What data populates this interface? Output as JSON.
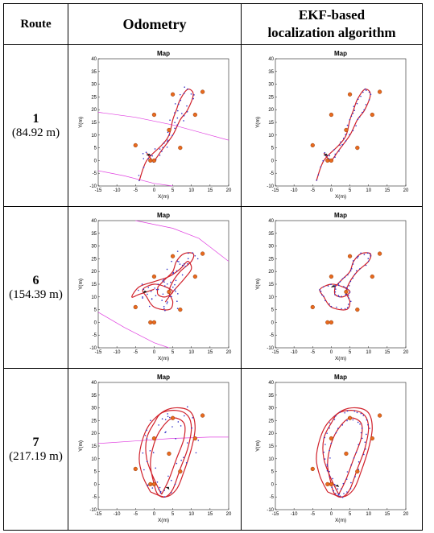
{
  "header": {
    "route": "Route",
    "odometry": "Odometry",
    "ekf_line1": "EKF-based",
    "ekf_line2": "localization algorithm"
  },
  "routes": [
    {
      "number": "1",
      "length": "(84.92 m)"
    },
    {
      "number": "6",
      "length": "(154.39 m)"
    },
    {
      "number": "7",
      "length": "(217.19 m)"
    }
  ],
  "plot_labels": {
    "title": "Map",
    "xlabel": "X(m)",
    "ylabel": "Y(m)",
    "xticks": [
      "-15",
      "-10",
      "-5",
      "0",
      "5",
      "10",
      "15",
      "20"
    ],
    "yticks": [
      "40",
      "35",
      "30",
      "25",
      "20",
      "15",
      "10",
      "5",
      "0",
      "-5",
      "-10"
    ]
  },
  "chart_data": [
    {
      "type": "scatter",
      "title": "Map",
      "xlabel": "X(m)",
      "ylabel": "Y(m)",
      "xlim": [
        -15,
        20
      ],
      "ylim": [
        -10,
        40
      ],
      "landmarks": [
        [
          5,
          26
        ],
        [
          13,
          27
        ],
        [
          0,
          18
        ],
        [
          11,
          18
        ],
        [
          4,
          12
        ],
        [
          7,
          5
        ],
        [
          -5,
          6
        ],
        [
          -1,
          0
        ],
        [
          0,
          0
        ]
      ],
      "colors": {
        "path": "#d0202a",
        "landmark": "#e86a1e",
        "odometry": "#3030c8",
        "sensor": "#e040e0"
      }
    }
  ]
}
